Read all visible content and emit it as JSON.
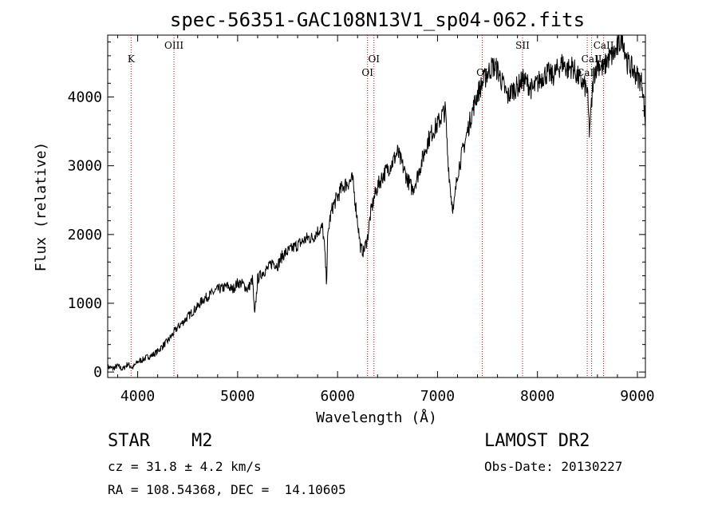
{
  "chart_data": {
    "type": "line",
    "title": "spec-56351-GAC108N13V1_sp04-062.fits",
    "xlabel": "Wavelength (Å)",
    "ylabel": "Flux (relative)",
    "xlim": [
      3700,
      9080
    ],
    "ylim": [
      -80,
      4900
    ],
    "xticks": [
      4000,
      5000,
      6000,
      7000,
      8000,
      9000
    ],
    "yticks": [
      0,
      1000,
      2000,
      3000,
      4000
    ],
    "grid": false,
    "line_color": "#000000",
    "marker_color": "#8b1a1a",
    "lines": [
      {
        "name": "K",
        "wavelength": 3934
      },
      {
        "name": "OIII",
        "wavelength": 4363
      },
      {
        "name": "OI",
        "wavelength": 6300
      },
      {
        "name": "OI",
        "wavelength": 6364
      },
      {
        "name": "OI",
        "wavelength": 7447
      },
      {
        "name": "SII",
        "wavelength": 7851
      },
      {
        "name": "CaII",
        "wavelength": 8498
      },
      {
        "name": "CaII",
        "wavelength": 8542
      },
      {
        "name": "CaII",
        "wavelength": 8662
      }
    ],
    "spectrum": {
      "x": [
        3700,
        3750,
        3800,
        3850,
        3900,
        3950,
        4000,
        4050,
        4100,
        4150,
        4200,
        4250,
        4300,
        4350,
        4400,
        4450,
        4500,
        4550,
        4600,
        4650,
        4700,
        4750,
        4800,
        4850,
        4900,
        4950,
        5000,
        5050,
        5100,
        5150,
        5170,
        5200,
        5250,
        5300,
        5350,
        5400,
        5450,
        5500,
        5550,
        5600,
        5650,
        5700,
        5750,
        5800,
        5850,
        5870,
        5890,
        5900,
        5920,
        5950,
        6000,
        6050,
        6100,
        6150,
        6200,
        6230,
        6260,
        6300,
        6330,
        6360,
        6400,
        6450,
        6500,
        6550,
        6600,
        6650,
        6700,
        6750,
        6800,
        6850,
        6900,
        6950,
        7000,
        7050,
        7080,
        7100,
        7120,
        7140,
        7160,
        7200,
        7250,
        7300,
        7350,
        7400,
        7450,
        7500,
        7550,
        7600,
        7650,
        7700,
        7750,
        7800,
        7850,
        7900,
        7950,
        8000,
        8050,
        8100,
        8150,
        8200,
        8250,
        8300,
        8350,
        8400,
        8450,
        8498,
        8520,
        8542,
        8560,
        8600,
        8662,
        8700,
        8750,
        8800,
        8850,
        8900,
        8950,
        9000,
        9050,
        9080
      ],
      "y": [
        80,
        50,
        90,
        40,
        120,
        60,
        150,
        180,
        220,
        250,
        300,
        380,
        450,
        550,
        650,
        720,
        800,
        880,
        950,
        1050,
        1100,
        1150,
        1200,
        1220,
        1250,
        1200,
        1300,
        1280,
        1200,
        1350,
        800,
        1350,
        1450,
        1500,
        1600,
        1550,
        1700,
        1750,
        1800,
        1850,
        1900,
        1950,
        1950,
        2050,
        2100,
        1800,
        1300,
        1900,
        2200,
        2400,
        2550,
        2700,
        2750,
        2800,
        2200,
        1800,
        1750,
        1950,
        2300,
        2500,
        2700,
        2850,
        2950,
        3050,
        3200,
        3000,
        2800,
        2650,
        2850,
        3100,
        3350,
        3500,
        3600,
        3750,
        3800,
        3200,
        2800,
        2500,
        2350,
        2900,
        3200,
        3500,
        3800,
        4050,
        4200,
        4350,
        4450,
        4400,
        4200,
        4000,
        4100,
        4150,
        4250,
        4200,
        4100,
        4200,
        4300,
        4350,
        4300,
        4400,
        4500,
        4400,
        4450,
        4300,
        4200,
        4100,
        3500,
        3900,
        4300,
        4500,
        4400,
        4550,
        4600,
        4700,
        4900,
        4500,
        4400,
        4300,
        4200,
        3600
      ]
    }
  },
  "info": {
    "object_class": "STAR",
    "subclass": "M2",
    "survey": "LAMOST DR2",
    "cz": "cz = 31.8 ± 4.2 km/s",
    "obs_date": "Obs-Date: 20130227",
    "coords": "RA = 108.54368, DEC =  14.10605"
  }
}
